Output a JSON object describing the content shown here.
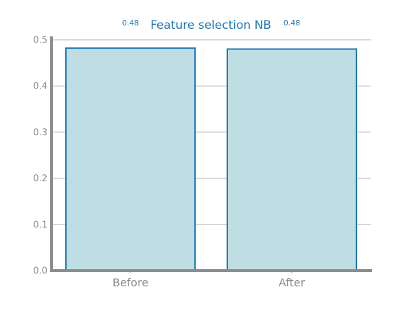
{
  "chart_data": {
    "type": "bar",
    "title": "Feature selection NB",
    "categories": [
      "Before",
      "After"
    ],
    "values": [
      0.482,
      0.48
    ],
    "data_labels": [
      "0.48",
      "0.48"
    ],
    "yticks": [
      "0.0",
      "0.1",
      "0.2",
      "0.3",
      "0.4",
      "0.5"
    ],
    "ylim": [
      0,
      0.5
    ],
    "xlabel": "",
    "ylabel": "",
    "grid": "horizontal",
    "colors": {
      "bar_fill": "#bfdee3",
      "bar_edge": "#1f77b4",
      "title": "#1f77b4",
      "axis": "#8c8c8c",
      "grid": "#cccccc"
    }
  }
}
